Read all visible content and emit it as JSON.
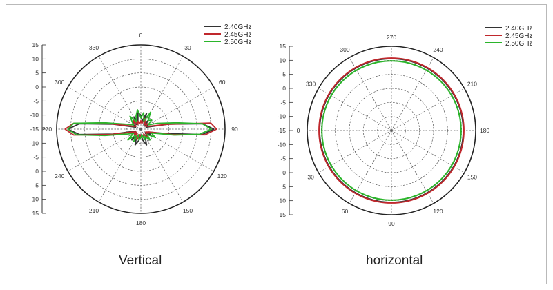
{
  "chart_data": [
    {
      "type": "polar",
      "caption": "Vertical",
      "r_ticks": [
        "15",
        "10",
        "5",
        "0",
        "-5",
        "-10",
        "-15",
        "-10",
        "-5",
        "0",
        "5",
        "10",
        "15"
      ],
      "angle_labels": [
        "0",
        "30",
        "60",
        "90",
        "120",
        "150",
        "180",
        "210",
        "240",
        "270",
        "300",
        "330"
      ],
      "r_range": [
        -15,
        15
      ],
      "grid": true,
      "legend_position": "top-right",
      "series": [
        {
          "name": "2.40GHz",
          "color": "#333333",
          "angles": [
            0,
            10,
            20,
            30,
            40,
            50,
            60,
            70,
            80,
            85,
            90,
            95,
            100,
            110,
            120,
            130,
            140,
            150,
            160,
            170,
            180,
            190,
            200,
            210,
            220,
            230,
            240,
            250,
            260,
            265,
            270,
            275,
            280,
            290,
            300,
            310,
            320,
            330,
            340,
            350
          ],
          "values": [
            -10,
            -12,
            -9,
            -13,
            -11,
            -13,
            -12,
            -13,
            -5,
            7,
            11,
            7,
            -6,
            -12,
            -11,
            -13,
            -10,
            -12,
            -9,
            -11,
            -13,
            -11,
            -9,
            -12,
            -10,
            -13,
            -12,
            -13,
            -5,
            7,
            11,
            7,
            -5,
            -13,
            -12,
            -11,
            -13,
            -10,
            -12,
            -9
          ]
        },
        {
          "name": "2.45GHz",
          "color": "#c0282d",
          "angles": [
            0,
            10,
            20,
            30,
            40,
            50,
            60,
            70,
            80,
            85,
            90,
            95,
            100,
            110,
            120,
            130,
            140,
            150,
            160,
            170,
            180,
            190,
            200,
            210,
            220,
            230,
            240,
            250,
            260,
            265,
            270,
            275,
            280,
            290,
            300,
            310,
            320,
            330,
            340,
            350
          ],
          "values": [
            -12,
            -13,
            -11,
            -12,
            -13,
            -12,
            -13,
            -12,
            -5,
            10,
            12,
            8,
            -4,
            -12,
            -13,
            -12,
            -11,
            -13,
            -12,
            -13,
            -12,
            -13,
            -11,
            -12,
            -13,
            -12,
            -13,
            -12,
            -4,
            9,
            12,
            9,
            -4,
            -12,
            -13,
            -12,
            -11,
            -13,
            -12,
            -13
          ]
        },
        {
          "name": "2.50GHz",
          "color": "#2bb52b",
          "angles": [
            0,
            10,
            20,
            30,
            40,
            50,
            60,
            70,
            80,
            85,
            90,
            95,
            100,
            110,
            120,
            130,
            140,
            150,
            160,
            170,
            180,
            190,
            200,
            210,
            220,
            230,
            240,
            250,
            260,
            265,
            270,
            275,
            280,
            290,
            300,
            310,
            320,
            330,
            340,
            350
          ],
          "values": [
            -11,
            -9,
            -12,
            -8,
            -11,
            -10,
            -12,
            -9,
            -2,
            7,
            10,
            6,
            -3,
            -11,
            -9,
            -12,
            -10,
            -12,
            -11,
            -13,
            -12,
            -11,
            -13,
            -10,
            -12,
            -9,
            -12,
            -10,
            -2,
            8,
            11,
            9,
            -2,
            -10,
            -12,
            -11,
            -9,
            -12,
            -10,
            -8
          ]
        }
      ]
    },
    {
      "type": "polar",
      "caption": "horizontal",
      "r_ticks": [
        "15",
        "10",
        "5",
        "0",
        "-5",
        "-10",
        "-15",
        "-10",
        "-5",
        "0",
        "5",
        "10",
        "15"
      ],
      "angle_labels": [
        "90",
        "60",
        "30",
        "0",
        "330",
        "300",
        "270",
        "240",
        "210",
        "180",
        "150",
        "120"
      ],
      "r_range": [
        -15,
        15
      ],
      "grid": true,
      "legend_position": "top-right",
      "series": [
        {
          "name": "2.40GHz",
          "color": "#333333",
          "constant": 10.6
        },
        {
          "name": "2.45GHz",
          "color": "#c0282d",
          "constant": 10.8
        },
        {
          "name": "2.50GHz",
          "color": "#2bb52b",
          "constant": 9.8
        }
      ]
    }
  ]
}
